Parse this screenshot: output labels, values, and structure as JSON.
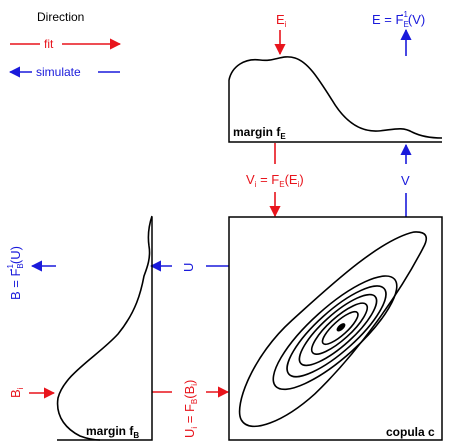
{
  "legend": {
    "title": "Direction",
    "fit_label": "fit",
    "simulate_label": "simulate"
  },
  "colors": {
    "fit": "#e8141c",
    "simulate": "#1a1adb",
    "ink": "#000000"
  },
  "top": {
    "input_label": "E",
    "input_sub": "i",
    "output_formula": {
      "lhs": "E = F",
      "sub": "E",
      "sup": "-1",
      "rhs": "(V)"
    },
    "margin_label": "margin f",
    "margin_sub": "E"
  },
  "middle": {
    "fit_formula": {
      "v": "V",
      "v_sub": "i",
      "eq": " = F",
      "f_sub": "E",
      "arg_open": "(E",
      "arg_sub": "i",
      "arg_close": ")"
    },
    "simulate_label": "V"
  },
  "left": {
    "output_formula": {
      "lhs": "B = F",
      "sub": "B",
      "sup": "-1",
      "rhs": "(U)"
    },
    "simulate_label": "U",
    "input_label": "B",
    "input_sub": "i",
    "fit_formula": {
      "u": "U",
      "u_sub": "i",
      "eq": " = F",
      "f_sub": "B",
      "arg_open": "(B",
      "arg_sub": "i",
      "arg_close": ")"
    },
    "margin_label": "margin f",
    "margin_sub": "B"
  },
  "copula": {
    "label": "copula c"
  }
}
